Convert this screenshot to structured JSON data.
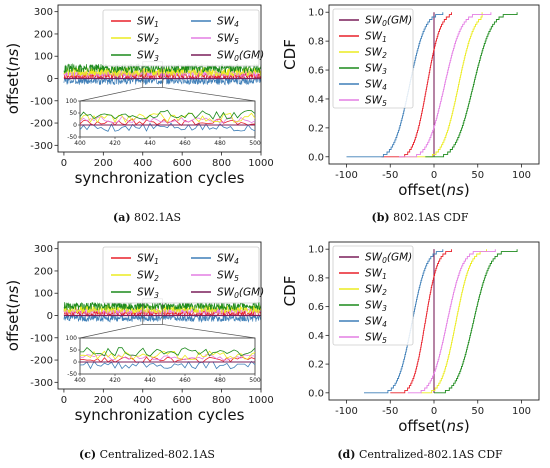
{
  "colors": {
    "SW1": "#e8202a",
    "SW2": "#ecec20",
    "SW3": "#1c8a1c",
    "SW4": "#3f7fb8",
    "SW5": "#e47ee4",
    "SW0": "#7a1f5a"
  },
  "legend_labels": {
    "SW1": "SW1",
    "SW2": "SW2",
    "SW3": "SW3",
    "SW4": "SW4",
    "SW5": "SW5",
    "SW0": "SW0(GM)"
  },
  "captions": [
    {
      "tag": "(a)",
      "text": "802.1AS"
    },
    {
      "tag": "(b)",
      "text": "802.1AS CDF"
    },
    {
      "tag": "(c)",
      "text": "Centralized-802.1AS"
    },
    {
      "tag": "(d)",
      "text": "Centralized-802.1AS CDF"
    }
  ],
  "chart_data": [
    {
      "type": "line",
      "panel": "a",
      "xlabel": "synchronization cycles",
      "ylabel": "offset(ns)",
      "xlim": [
        -30,
        1000
      ],
      "ylim": [
        -330,
        330
      ],
      "xticks": [
        0,
        200,
        400,
        600,
        800,
        1000
      ],
      "yticks": [
        -300,
        -200,
        -100,
        0,
        100,
        200,
        300
      ],
      "legend": {
        "placement": "upper-right",
        "columns": 2,
        "order": [
          "SW1",
          "SW4",
          "SW2",
          "SW5",
          "SW3",
          "SW0"
        ]
      },
      "series": [
        {
          "key": "SW1",
          "mean": 12,
          "amp": 14
        },
        {
          "key": "SW2",
          "mean": 30,
          "amp": 20
        },
        {
          "key": "SW3",
          "mean": 45,
          "amp": 20
        },
        {
          "key": "SW4",
          "mean": -10,
          "amp": 18
        },
        {
          "key": "SW5",
          "mean": 22,
          "amp": 14
        },
        {
          "key": "SW0",
          "mean": 0,
          "amp": 0
        }
      ],
      "inset": {
        "xlim": [
          400,
          500
        ],
        "ylim": [
          -50,
          100
        ],
        "xticks": [
          400,
          420,
          440,
          460,
          480,
          500
        ],
        "yticks": [
          -50,
          0,
          50,
          100
        ],
        "zoom_range": [
          400,
          500
        ]
      }
    },
    {
      "type": "line",
      "panel": "b",
      "xlabel": "offset(ns)",
      "ylabel": "CDF",
      "xlim": [
        -120,
        120
      ],
      "ylim": [
        -0.05,
        1.05
      ],
      "xticks": [
        -100,
        -50,
        0,
        50,
        100
      ],
      "yticks": [
        0.0,
        0.2,
        0.4,
        0.6,
        0.8,
        1.0
      ],
      "legend": {
        "placement": "upper-left",
        "columns": 1,
        "order": [
          "SW0",
          "SW1",
          "SW2",
          "SW3",
          "SW4",
          "SW5"
        ]
      },
      "series": [
        {
          "key": "SW0",
          "vertical_at": 0
        },
        {
          "key": "SW1",
          "min": -60,
          "max": 20,
          "mu": -8,
          "s": 12
        },
        {
          "key": "SW2",
          "min": -35,
          "max": 55,
          "mu": 28,
          "s": 14
        },
        {
          "key": "SW3",
          "min": -10,
          "max": 95,
          "mu": 45,
          "s": 16
        },
        {
          "key": "SW4",
          "min": -100,
          "max": 10,
          "mu": -28,
          "s": 14
        },
        {
          "key": "SW5",
          "min": -40,
          "max": 65,
          "mu": 12,
          "s": 15
        }
      ]
    },
    {
      "type": "line",
      "panel": "c",
      "xlabel": "synchronization cycles",
      "ylabel": "offset(ns)",
      "xlim": [
        -30,
        1000
      ],
      "ylim": [
        -330,
        330
      ],
      "xticks": [
        0,
        200,
        400,
        600,
        800,
        1000
      ],
      "yticks": [
        -300,
        -200,
        -100,
        0,
        100,
        200,
        300
      ],
      "legend": {
        "placement": "upper-right",
        "columns": 2,
        "order": [
          "SW1",
          "SW4",
          "SW2",
          "SW5",
          "SW3",
          "SW0"
        ]
      },
      "series": [
        {
          "key": "SW1",
          "mean": 10,
          "amp": 12
        },
        {
          "key": "SW2",
          "mean": 28,
          "amp": 18
        },
        {
          "key": "SW3",
          "mean": 42,
          "amp": 18
        },
        {
          "key": "SW4",
          "mean": -12,
          "amp": 16
        },
        {
          "key": "SW5",
          "mean": 20,
          "amp": 12
        },
        {
          "key": "SW0",
          "mean": 0,
          "amp": 0
        }
      ],
      "inset": {
        "xlim": [
          400,
          500
        ],
        "ylim": [
          -50,
          100
        ],
        "xticks": [
          400,
          420,
          440,
          460,
          480,
          500
        ],
        "yticks": [
          -50,
          0,
          50,
          100
        ],
        "zoom_range": [
          400,
          500
        ]
      }
    },
    {
      "type": "line",
      "panel": "d",
      "xlabel": "offset(ns)",
      "ylabel": "CDF",
      "xlim": [
        -120,
        120
      ],
      "ylim": [
        -0.05,
        1.05
      ],
      "xticks": [
        -100,
        -50,
        0,
        50,
        100
      ],
      "yticks": [
        0.0,
        0.2,
        0.4,
        0.6,
        0.8,
        1.0
      ],
      "legend": {
        "placement": "upper-left",
        "columns": 1,
        "order": [
          "SW0",
          "SW1",
          "SW2",
          "SW3",
          "SW4",
          "SW5"
        ]
      },
      "series": [
        {
          "key": "SW0",
          "vertical_at": 0
        },
        {
          "key": "SW1",
          "min": -50,
          "max": 20,
          "mu": -10,
          "s": 11
        },
        {
          "key": "SW2",
          "min": -15,
          "max": 60,
          "mu": 25,
          "s": 13
        },
        {
          "key": "SW3",
          "min": 0,
          "max": 95,
          "mu": 45,
          "s": 15
        },
        {
          "key": "SW4",
          "min": -80,
          "max": 10,
          "mu": -25,
          "s": 13
        },
        {
          "key": "SW5",
          "min": -30,
          "max": 70,
          "mu": 15,
          "s": 14
        }
      ]
    }
  ]
}
